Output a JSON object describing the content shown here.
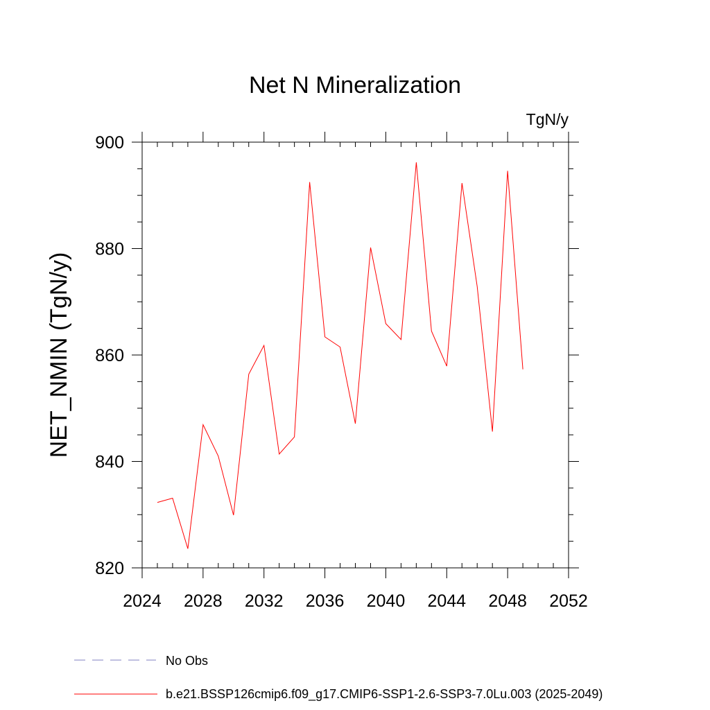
{
  "chart_data": {
    "type": "line",
    "title": "Net N Mineralization",
    "units_label": "TgN/y",
    "ylabel": "NET_NMIN  (TgN/y)",
    "xlabel": "",
    "xlim": [
      2024,
      2052
    ],
    "ylim": [
      820,
      900
    ],
    "xticks": [
      2024,
      2028,
      2032,
      2036,
      2040,
      2044,
      2048,
      2052
    ],
    "yticks": [
      820,
      840,
      860,
      880,
      900
    ],
    "x_minor_step": 1,
    "y_minor_step": 5,
    "grid": false,
    "legend_position": "bottom",
    "series": [
      {
        "name": "b.e21.BSSP126cmip6.f09_g17.CMIP6-SSP1-2.6-SSP3-7.0Lu.003 (2025-2049)",
        "color": "#ff0000",
        "style": "solid",
        "x": [
          2025,
          2026,
          2027,
          2028,
          2029,
          2030,
          2031,
          2032,
          2033,
          2034,
          2035,
          2036,
          2037,
          2038,
          2039,
          2040,
          2041,
          2042,
          2043,
          2044,
          2045,
          2046,
          2047,
          2048,
          2049
        ],
        "y": [
          832.3,
          833.1,
          823.6,
          846.9,
          841.0,
          829.9,
          856.4,
          861.8,
          841.4,
          844.6,
          892.5,
          863.4,
          861.5,
          847.1,
          880.2,
          865.9,
          862.9,
          896.2,
          864.5,
          857.9,
          892.3,
          872.9,
          845.6,
          894.6,
          857.3
        ]
      }
    ],
    "legend": [
      {
        "label": "No Obs",
        "color": "#8080c0",
        "style": "dashed"
      },
      {
        "label": "b.e21.BSSP126cmip6.f09_g17.CMIP6-SSP1-2.6-SSP3-7.0Lu.003 (2025-2049)",
        "color": "#ff0000",
        "style": "solid"
      }
    ]
  }
}
